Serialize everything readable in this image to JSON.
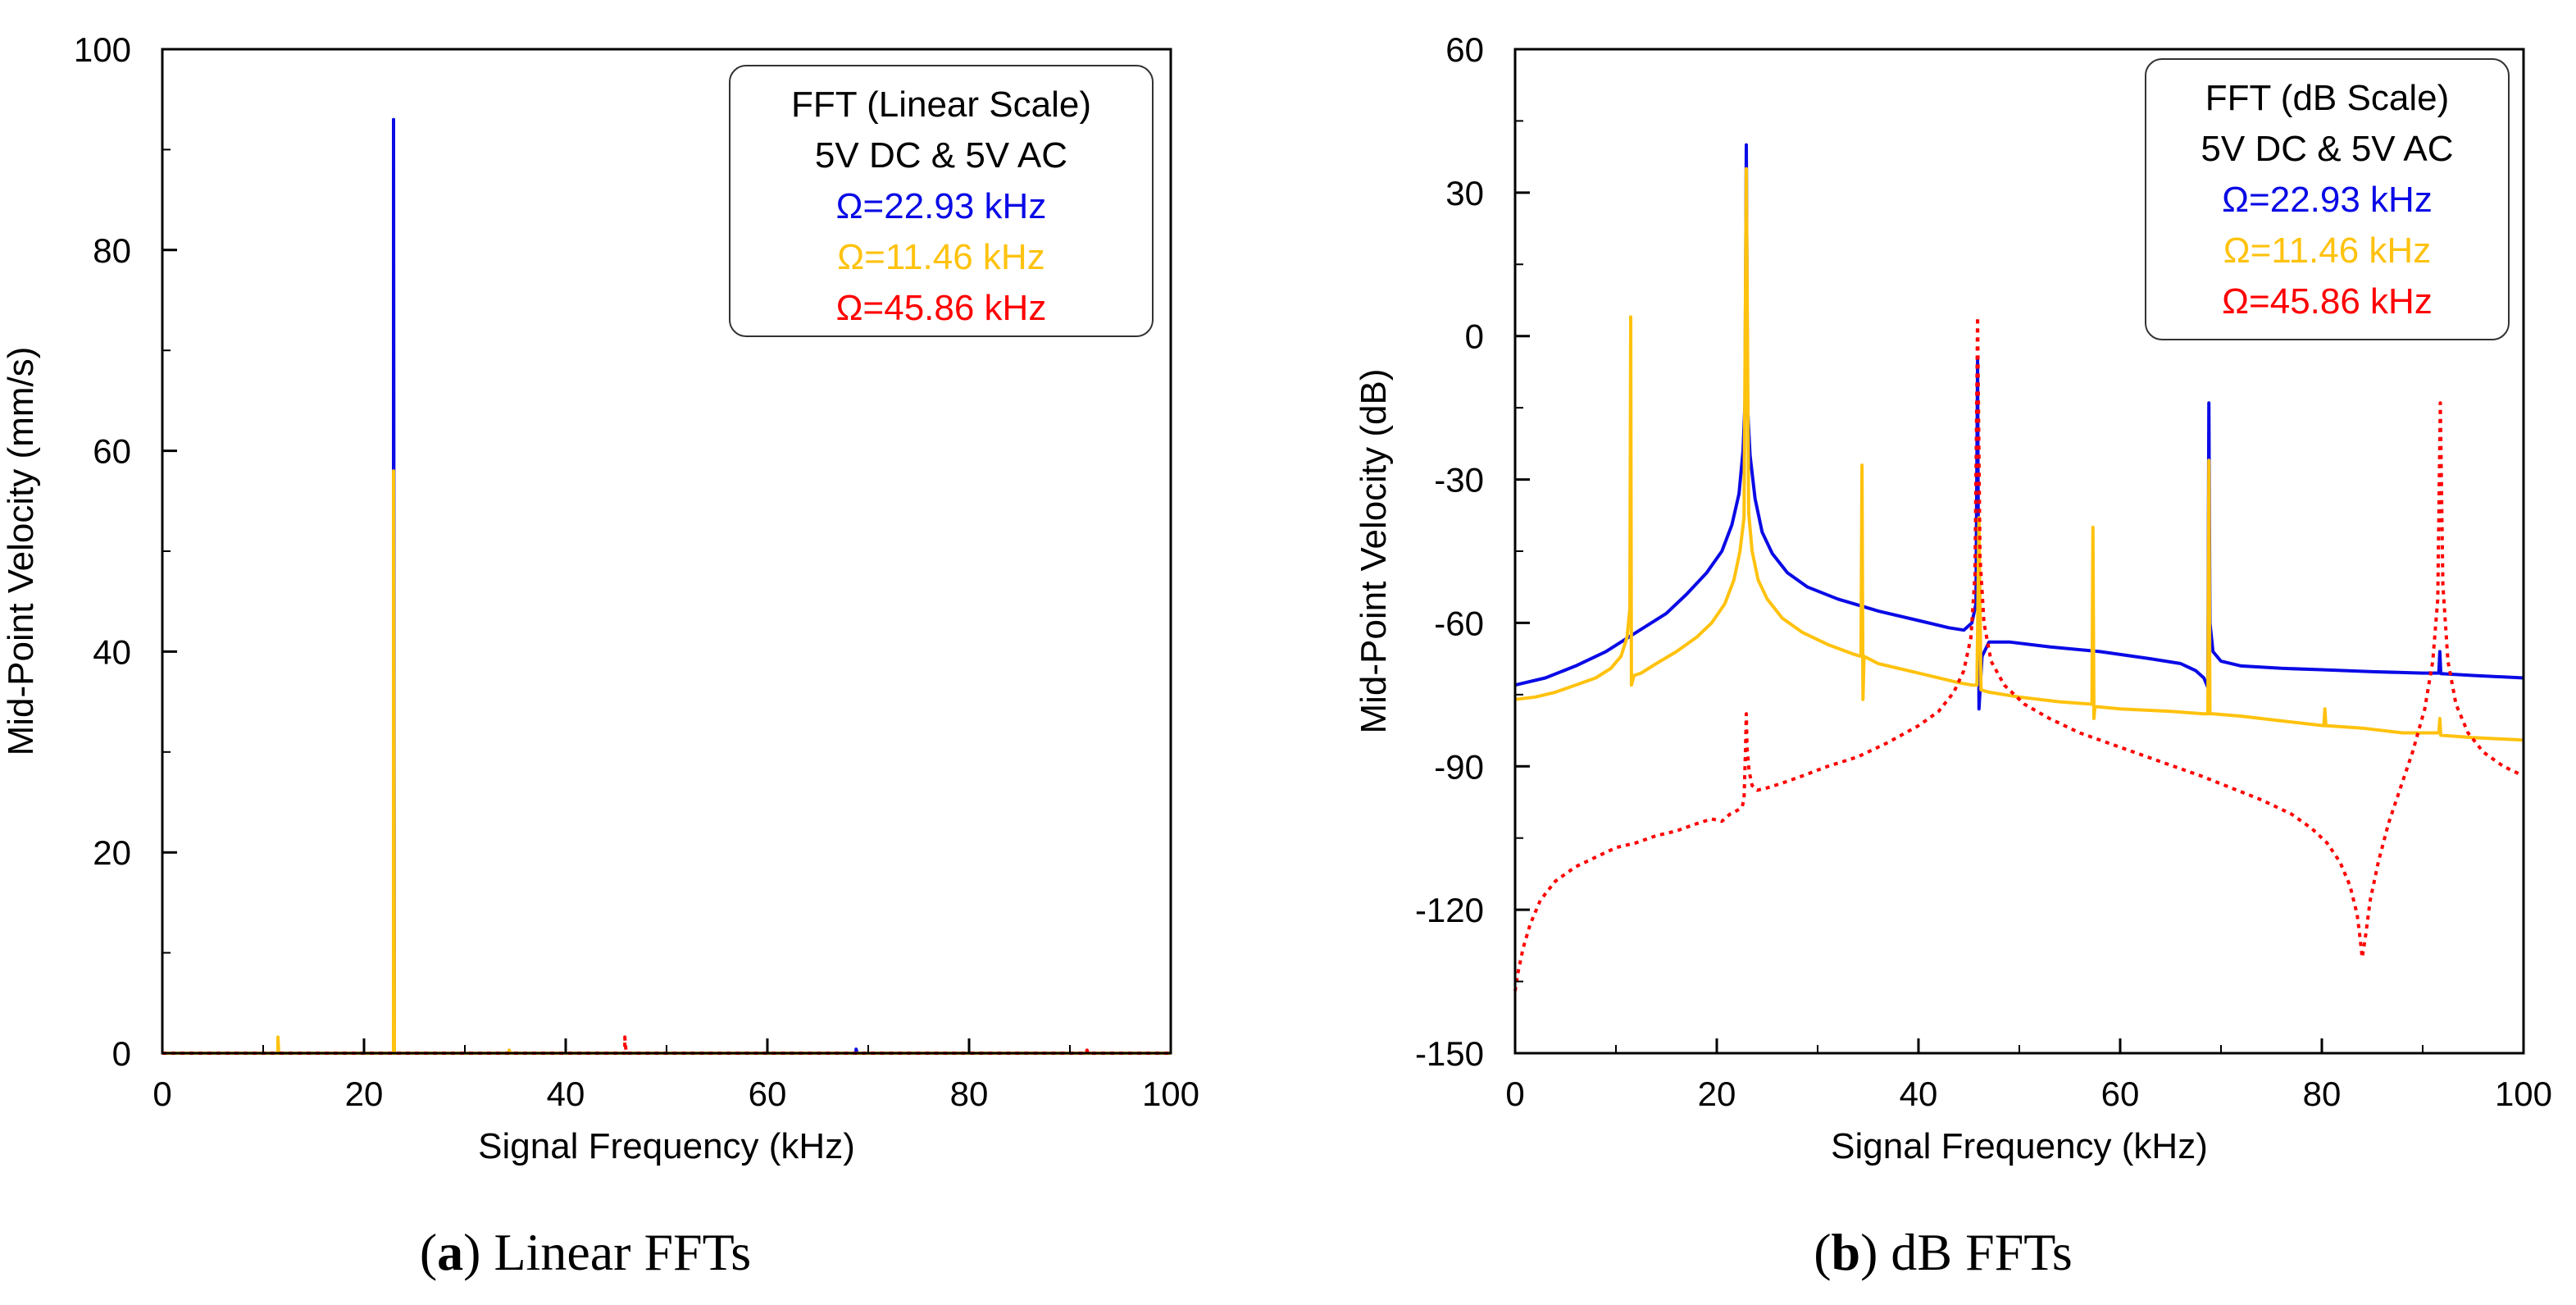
{
  "chart_data": [
    {
      "id": "a",
      "type": "line",
      "title": "",
      "caption_letter": "a",
      "caption_text": "Linear FFTs",
      "xlabel": "Signal Frequency (kHz)",
      "ylabel": "Mid-Point Velocity (mm/s)",
      "xlim": [
        0,
        100
      ],
      "ylim": [
        0,
        100
      ],
      "xticks": [
        0,
        20,
        40,
        60,
        80,
        100
      ],
      "yticks": [
        0,
        20,
        40,
        60,
        80,
        100
      ],
      "grid": false,
      "legend": {
        "placement": "top-right",
        "lines": [
          {
            "text": "FFT (Linear Scale)",
            "color": "#000000"
          },
          {
            "text": "5V DC & 5V AC",
            "color": "#000000"
          },
          {
            "text": "Ω=22.93 kHz",
            "color": "#0a0ae6"
          },
          {
            "text": "Ω=11.46 kHz",
            "color": "#ffc20e"
          },
          {
            "text": "Ω=45.86 kHz",
            "color": "#ff0000"
          }
        ]
      },
      "series": [
        {
          "name": "Ω=22.93 kHz",
          "color": "#0a0ae6",
          "style": "solid",
          "x": [
            0,
            22.85,
            22.93,
            22.93,
            23.01,
            68.7,
            68.8,
            68.8,
            68.9,
            100
          ],
          "y": [
            0,
            0,
            0,
            93,
            0,
            0,
            0,
            0.4,
            0,
            0
          ]
        },
        {
          "name": "Ω=11.46 kHz",
          "color": "#ffc20e",
          "style": "solid",
          "x": [
            0,
            11.38,
            11.46,
            11.46,
            11.54,
            22.85,
            22.93,
            22.93,
            23.01,
            34.4,
            34.4,
            34.5,
            100
          ],
          "y": [
            0,
            0,
            0,
            1.6,
            0,
            0,
            0,
            58,
            0,
            0,
            0.3,
            0,
            0
          ]
        },
        {
          "name": "Ω=45.86 kHz",
          "color": "#ff0000",
          "style": "dotted",
          "x": [
            0,
            45.7,
            45.86,
            45.86,
            46.0,
            91.6,
            91.7,
            91.8,
            100
          ],
          "y": [
            0,
            0,
            0,
            1.6,
            0,
            0,
            0.3,
            0,
            0
          ]
        }
      ]
    },
    {
      "id": "b",
      "type": "line",
      "title": "",
      "caption_letter": "b",
      "caption_text": "dB FFTs",
      "xlabel": "Signal Frequency (kHz)",
      "ylabel": "Mid-Point Velocity (dB)",
      "xlim": [
        0,
        100
      ],
      "ylim": [
        -150,
        60
      ],
      "xticks": [
        0,
        20,
        40,
        60,
        80,
        100
      ],
      "yticks": [
        -150,
        -120,
        -90,
        -60,
        -30,
        0,
        30,
        60
      ],
      "grid": false,
      "legend": {
        "placement": "top-right",
        "lines": [
          {
            "text": "FFT (dB Scale)",
            "color": "#000000"
          },
          {
            "text": "5V DC & 5V AC",
            "color": "#000000"
          },
          {
            "text": "Ω=22.93 kHz",
            "color": "#0a0ae6"
          },
          {
            "text": "Ω=11.46 kHz",
            "color": "#ffc20e"
          },
          {
            "text": "Ω=45.86 kHz",
            "color": "#ff0000"
          }
        ]
      },
      "series": [
        {
          "name": "Ω=22.93 kHz",
          "color": "#0a0ae6",
          "style": "solid",
          "x": [
            0,
            3,
            6,
            9,
            12,
            15,
            17,
            19,
            20.5,
            21.5,
            22.2,
            22.6,
            22.8,
            22.93,
            23.06,
            23.3,
            23.8,
            24.5,
            25.5,
            27,
            29,
            32,
            36,
            40,
            43,
            44.5,
            45.3,
            45.7,
            45.86,
            46.0,
            46.3,
            47,
            49,
            53,
            58,
            63,
            66,
            67.5,
            68.3,
            68.7,
            68.8,
            68.9,
            69.2,
            70,
            72,
            76,
            80,
            85,
            90,
            91.6,
            91.7,
            91.8,
            95,
            100
          ],
          "y": [
            -73,
            -71.5,
            -69,
            -66,
            -62,
            -58,
            -54,
            -49.5,
            -45,
            -39.5,
            -33,
            -24,
            -14,
            40,
            -15,
            -25,
            -34,
            -41,
            -45.5,
            -49.5,
            -52.5,
            -55,
            -57.5,
            -59.5,
            -61,
            -61.5,
            -60,
            -56,
            -5,
            -78,
            -67,
            -64,
            -64,
            -65,
            -66,
            -67.5,
            -68.5,
            -70,
            -71.5,
            -73.5,
            -14,
            -60,
            -66,
            -68,
            -69,
            -69.5,
            -69.8,
            -70.2,
            -70.5,
            -70.5,
            -66,
            -70.6,
            -71,
            -71.5
          ]
        },
        {
          "name": "Ω=11.46 kHz",
          "color": "#ffc20e",
          "style": "solid",
          "x": [
            0,
            2,
            4,
            6,
            8,
            9.5,
            10.5,
            11.1,
            11.38,
            11.46,
            11.54,
            11.8,
            12.5,
            14,
            16,
            18,
            19.5,
            20.8,
            21.7,
            22.3,
            22.7,
            22.93,
            23.16,
            23.5,
            24.1,
            25,
            26.5,
            28.5,
            31,
            33.5,
            34.3,
            34.4,
            34.5,
            34.6,
            36,
            40,
            44,
            45.3,
            45.8,
            46.0,
            46.2,
            47,
            50,
            54,
            57.2,
            57.3,
            57.4,
            57.5,
            60,
            65,
            68.3,
            68.7,
            68.8,
            68.9,
            69.2,
            72,
            76,
            80.2,
            80.3,
            80.4,
            80.5,
            84,
            88,
            91.6,
            91.7,
            91.8,
            95,
            100
          ],
          "y": [
            -76,
            -75.5,
            -74.5,
            -73,
            -71.5,
            -69.5,
            -67,
            -63,
            -57,
            4,
            -73,
            -71,
            -70.5,
            -68.5,
            -66,
            -63,
            -60,
            -56,
            -51,
            -45,
            -38,
            35,
            -37,
            -45,
            -51,
            -55,
            -59,
            -62,
            -64.5,
            -66.5,
            -67,
            -27,
            -76,
            -67,
            -68.5,
            -70.5,
            -72.5,
            -73,
            -73,
            -38,
            -74,
            -74.5,
            -75.5,
            -76.5,
            -77,
            -40,
            -80,
            -77.5,
            -78,
            -78.5,
            -79,
            -79,
            -26,
            -79,
            -79,
            -79.5,
            -80.5,
            -81.5,
            -78,
            -81.5,
            -81.5,
            -82,
            -83,
            -83,
            -80,
            -83.5,
            -84,
            -84.5
          ]
        },
        {
          "name": "Ω=45.86 kHz",
          "color": "#ff0000",
          "style": "dotted",
          "x": [
            0,
            0.3,
            0.8,
            1.5,
            2.5,
            4,
            6,
            8,
            10,
            12,
            14,
            16,
            18,
            19.5,
            20.5,
            21.3,
            21.8,
            22.2,
            22.5,
            22.7,
            22.85,
            22.93,
            23.0,
            23.2,
            23.5,
            24,
            25,
            26.5,
            28.5,
            31,
            34,
            37,
            40,
            42,
            43.5,
            44.5,
            45.2,
            45.6,
            45.86,
            46.1,
            46.5,
            47.2,
            48.5,
            50.5,
            53,
            56,
            60,
            64,
            68,
            71,
            74,
            77,
            79,
            80.5,
            81.8,
            82.8,
            83.5,
            83.8,
            84.0,
            84.3,
            84.8,
            85.6,
            86.6,
            87.8,
            89,
            90.2,
            91.0,
            91.5,
            91.75,
            92.0,
            92.5,
            93.3,
            94.5,
            96,
            98,
            100
          ],
          "y": [
            -137,
            -133,
            -128,
            -123,
            -118,
            -114,
            -111,
            -109,
            -107,
            -106,
            -104.5,
            -103.5,
            -102,
            -101,
            -101.5,
            -100,
            -99.5,
            -99,
            -98.5,
            -97,
            -86,
            -79,
            -86,
            -91,
            -94,
            -95,
            -94.5,
            -93.5,
            -92,
            -90,
            -88,
            -85,
            -81.5,
            -78.5,
            -74.5,
            -70,
            -63,
            -50,
            4,
            -46,
            -60,
            -68,
            -73,
            -77,
            -80,
            -83,
            -86,
            -89,
            -92,
            -94.5,
            -97,
            -100,
            -103,
            -106,
            -110,
            -115,
            -121,
            -126,
            -130,
            -126,
            -118,
            -110,
            -102,
            -94.5,
            -87,
            -78,
            -68,
            -55,
            -14,
            -52,
            -68,
            -77,
            -83,
            -87,
            -90,
            -92
          ]
        }
      ]
    }
  ]
}
